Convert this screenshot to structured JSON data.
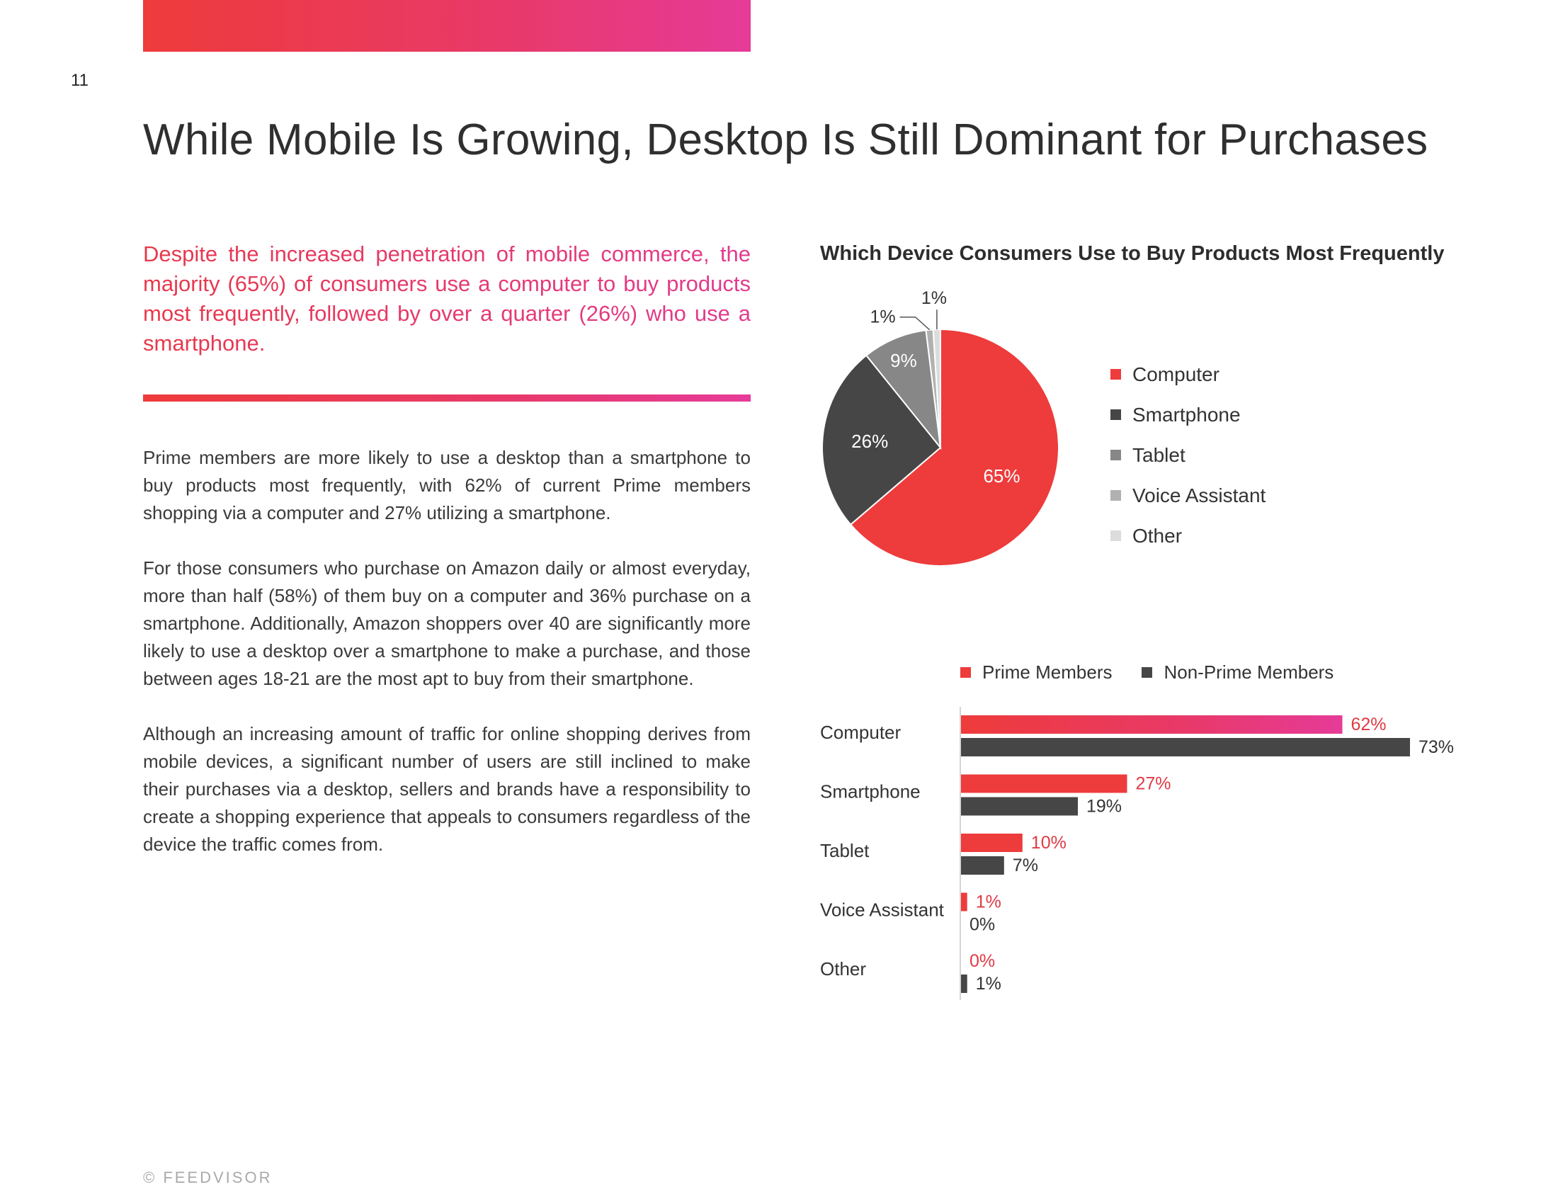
{
  "page": {
    "number": "11",
    "footer": "© FEEDVISOR"
  },
  "colors": {
    "brand_red": "#ee3b3b",
    "brand_pink": "#e63b98",
    "computer": "#ee3b3b",
    "smartphone": "#464646",
    "tablet": "#878787",
    "voice_assistant": "#b1b1b1",
    "other": "#dcdcdc",
    "non_prime": "#464646"
  },
  "title": "While Mobile Is Growing, Desktop Is Still Dominant for Purchases",
  "lead": "Despite the increased penetration of mobile commerce, the majority (65%) of consumers use a computer to buy products most frequently, followed by over a quarter (26%) who use a smartphone.",
  "body": [
    "Prime members are more likely to use a desktop than a smartphone to buy products most frequently, with 62% of current Prime members shopping via a computer and 27% utilizing a smartphone.",
    "For those consumers who purchase on Amazon daily or almost everyday, more than half (58%) of them buy on a computer and 36% purchase on a smartphone. Additionally, Amazon shoppers over 40 are significantly more likely to use a desktop over a smartphone to make a purchase, and those between ages 18-21 are the most apt to buy from their smartphone.",
    "Although an increasing amount of traffic for online shopping derives from mobile devices, a significant number of users are still inclined to make their purchases via a desktop, sellers and brands have a responsibility to create a shopping experience that appeals to consumers regardless of the device the traffic comes from."
  ],
  "chart_data": [
    {
      "type": "pie",
      "title": "Which Device Consumers Use to Buy Products Most Frequently",
      "labels": [
        "Computer",
        "Smartphone",
        "Tablet",
        "Voice Assistant",
        "Other"
      ],
      "values": [
        65,
        26,
        9,
        1,
        1
      ],
      "value_labels": [
        "65%",
        "26%",
        "9%",
        "1%",
        "1%"
      ],
      "legend_position": "right"
    },
    {
      "type": "bar",
      "orientation": "horizontal",
      "categories": [
        "Computer",
        "Smartphone",
        "Tablet",
        "Voice Assistant",
        "Other"
      ],
      "series": [
        {
          "name": "Prime Members",
          "values": [
            62,
            27,
            10,
            1,
            0
          ],
          "labels": [
            "62%",
            "27%",
            "10%",
            "1%",
            "0%"
          ]
        },
        {
          "name": "Non-Prime Members",
          "values": [
            73,
            19,
            7,
            0,
            1
          ],
          "labels": [
            "73%",
            "19%",
            "7%",
            "0%",
            "1%"
          ]
        }
      ],
      "xlim": [
        0,
        73
      ],
      "legend_position": "top"
    }
  ]
}
